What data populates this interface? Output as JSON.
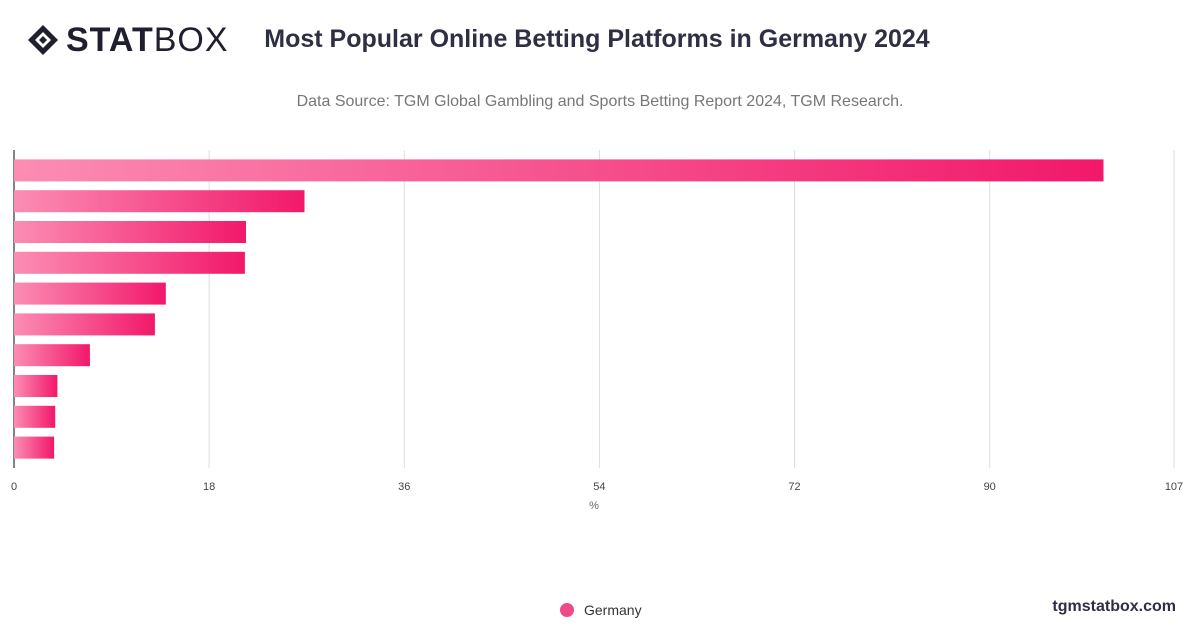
{
  "brand": {
    "logo_bold": "STAT",
    "logo_light": "BOX",
    "watermark": "tgmstatbox.com"
  },
  "header": {
    "title": "Most Popular Online Betting Platforms in Germany 2024",
    "subtitle": "Data Source: TGM Global Gambling and Sports Betting Report 2024, TGM Research."
  },
  "colors": {
    "bar_start": "#fb8db3",
    "bar_end": "#f2186a",
    "legend": "#f0498a",
    "axis": "#333333",
    "grid": "#dddddd"
  },
  "chart_data": {
    "type": "bar",
    "orientation": "horizontal",
    "title": "Most Popular Online Betting Platforms in Germany 2024",
    "subtitle": "Data Source: TGM Global Gambling and Sports Betting Report 2024, TGM Research.",
    "categories": [
      "",
      "",
      "",
      "",
      "",
      "",
      "",
      "",
      "",
      ""
    ],
    "series": [
      {
        "name": "Germany",
        "values": [
          100.5,
          26.8,
          21.4,
          21.3,
          14.0,
          13.0,
          7.0,
          4.0,
          3.8,
          3.7
        ]
      }
    ],
    "xlabel": "%",
    "xlim": [
      0,
      107
    ],
    "xticks": [
      0,
      18,
      36,
      54,
      72,
      90,
      107
    ],
    "grid": true,
    "legend": "bottom-center"
  }
}
